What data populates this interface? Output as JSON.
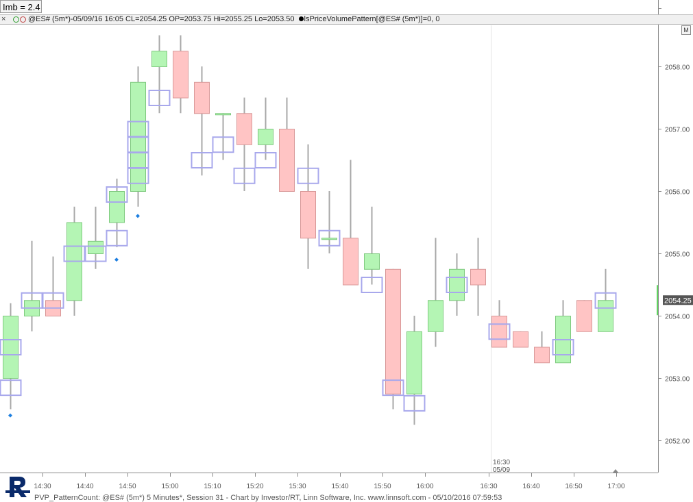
{
  "imbalance_label": "Imb = 2.4",
  "infobar": {
    "close_glyph": "×",
    "text": "@ES# (5m*)-05/09/16 16:05 CL=2054.25 OP=2053.75 Hi=2055.25 Lo=2053.50",
    "indicator_text": "lsPriceVolumePattern[@ES# (5m*)]=0, 0"
  },
  "m_button": "M",
  "footer_text": "PVP_PatternCount: @ES# (5m*) 5 Minutes*, Session 31 - Chart by Investor/RT, Linn Software, Inc. www.linnsoft.com - 05/10/2016 07:59:53",
  "colors": {
    "up_fill": "#b4f5b4",
    "up_border": "#7ec97e",
    "down_fill": "#ffc4c4",
    "down_border": "#d89898",
    "wick": "#a8a8a8",
    "pattern_box": "#a8a8ec",
    "marker": "#1e7fe0",
    "last_price_box": "#555555"
  },
  "chart_data": {
    "type": "candlestick",
    "ylim": [
      2051.55,
      2058.5
    ],
    "y_ticks": [
      {
        "value": 2052.0,
        "label": "2052.00"
      },
      {
        "value": 2053.0,
        "label": "2053.00"
      },
      {
        "value": 2054.0,
        "label": "2054.00"
      },
      {
        "value": 2055.0,
        "label": "2055.00"
      },
      {
        "value": 2056.0,
        "label": "2056.00"
      },
      {
        "value": 2057.0,
        "label": "2057.00"
      },
      {
        "value": 2058.0,
        "label": "2058.00"
      }
    ],
    "x_ticks": [
      {
        "bar": 2,
        "label": "14:30"
      },
      {
        "bar": 4,
        "label": "14:40"
      },
      {
        "bar": 6,
        "label": "14:50"
      },
      {
        "bar": 8,
        "label": "15:00"
      },
      {
        "bar": 10,
        "label": "15:10"
      },
      {
        "bar": 12,
        "label": "15:20"
      },
      {
        "bar": 14,
        "label": "15:30"
      },
      {
        "bar": 16,
        "label": "15:40"
      },
      {
        "bar": 18,
        "label": "15:50"
      },
      {
        "bar": 20,
        "label": "16:00"
      },
      {
        "bar": 23,
        "label": "16:30"
      },
      {
        "bar": 25,
        "label": "16:40"
      },
      {
        "bar": 27,
        "label": "16:50"
      },
      {
        "bar": 29,
        "label": "17:00"
      }
    ],
    "session_break": {
      "bar": 23,
      "time": "16:30",
      "date": "05/09"
    },
    "last_price": "2054.25",
    "candles": [
      {
        "o": 2053.0,
        "h": 2054.2,
        "l": 2052.5,
        "c": 2054.0
      },
      {
        "o": 2054.0,
        "h": 2055.2,
        "l": 2053.75,
        "c": 2054.25
      },
      {
        "o": 2054.25,
        "h": 2054.95,
        "l": 2054.0,
        "c": 2054.0
      },
      {
        "o": 2054.25,
        "h": 2055.75,
        "l": 2054.0,
        "c": 2055.5
      },
      {
        "o": 2055.0,
        "h": 2055.75,
        "l": 2054.75,
        "c": 2055.2
      },
      {
        "o": 2055.5,
        "h": 2056.2,
        "l": 2055.1,
        "c": 2056.0
      },
      {
        "o": 2056.0,
        "h": 2058.0,
        "l": 2055.75,
        "c": 2057.75
      },
      {
        "o": 2058.0,
        "h": 2058.5,
        "l": 2057.25,
        "c": 2058.25
      },
      {
        "o": 2058.25,
        "h": 2058.5,
        "l": 2057.25,
        "c": 2057.5
      },
      {
        "o": 2057.75,
        "h": 2058.0,
        "l": 2056.25,
        "c": 2057.25
      },
      {
        "o": 2057.25,
        "h": 2057.25,
        "l": 2056.5,
        "c": 2057.25
      },
      {
        "o": 2057.25,
        "h": 2057.5,
        "l": 2056.0,
        "c": 2056.75
      },
      {
        "o": 2056.75,
        "h": 2057.5,
        "l": 2056.5,
        "c": 2057.0
      },
      {
        "o": 2057.0,
        "h": 2057.5,
        "l": 2056.0,
        "c": 2056.0
      },
      {
        "o": 2056.0,
        "h": 2056.75,
        "l": 2054.75,
        "c": 2055.25
      },
      {
        "o": 2055.25,
        "h": 2056.0,
        "l": 2055.0,
        "c": 2055.25
      },
      {
        "o": 2055.25,
        "h": 2056.5,
        "l": 2054.5,
        "c": 2054.5
      },
      {
        "o": 2054.75,
        "h": 2055.75,
        "l": 2054.5,
        "c": 2055.0
      },
      {
        "o": 2054.75,
        "h": 2054.75,
        "l": 2052.5,
        "c": 2052.75
      },
      {
        "o": 2052.75,
        "h": 2054.0,
        "l": 2052.25,
        "c": 2053.75
      },
      {
        "o": 2053.75,
        "h": 2055.25,
        "l": 2053.5,
        "c": 2054.25
      },
      {
        "o": 2054.25,
        "h": 2055.0,
        "l": 2054.0,
        "c": 2054.75
      },
      {
        "o": 2054.75,
        "h": 2055.25,
        "l": 2054.0,
        "c": 2054.5
      },
      {
        "o": 2054.0,
        "h": 2054.25,
        "l": 2053.5,
        "c": 2053.5
      },
      {
        "o": 2053.75,
        "h": 2053.75,
        "l": 2053.5,
        "c": 2053.5
      },
      {
        "o": 2053.5,
        "h": 2053.75,
        "l": 2053.25,
        "c": 2053.25
      },
      {
        "o": 2053.25,
        "h": 2054.25,
        "l": 2053.25,
        "c": 2054.0
      },
      {
        "o": 2054.25,
        "h": 2054.25,
        "l": 2053.75,
        "c": 2053.75
      },
      {
        "o": 2053.75,
        "h": 2054.75,
        "l": 2053.75,
        "c": 2054.25
      }
    ],
    "pattern_boxes": [
      {
        "bar": 0,
        "price": 2053.5
      },
      {
        "bar": 0,
        "price": 2052.85
      },
      {
        "bar": 1,
        "price": 2054.25
      },
      {
        "bar": 2,
        "price": 2054.25
      },
      {
        "bar": 3,
        "price": 2055.0
      },
      {
        "bar": 4,
        "price": 2055.0
      },
      {
        "bar": 5,
        "price": 2055.25
      },
      {
        "bar": 5,
        "price": 2055.95
      },
      {
        "bar": 6,
        "price": 2056.25
      },
      {
        "bar": 6,
        "price": 2056.5
      },
      {
        "bar": 6,
        "price": 2056.75
      },
      {
        "bar": 6,
        "price": 2057.0
      },
      {
        "bar": 7,
        "price": 2057.5
      },
      {
        "bar": 9,
        "price": 2056.5
      },
      {
        "bar": 10,
        "price": 2056.75
      },
      {
        "bar": 11,
        "price": 2056.25
      },
      {
        "bar": 12,
        "price": 2056.5
      },
      {
        "bar": 14,
        "price": 2056.25
      },
      {
        "bar": 15,
        "price": 2055.25
      },
      {
        "bar": 17,
        "price": 2054.5
      },
      {
        "bar": 18,
        "price": 2052.85
      },
      {
        "bar": 19,
        "price": 2052.6
      },
      {
        "bar": 21,
        "price": 2054.5
      },
      {
        "bar": 23,
        "price": 2053.75
      },
      {
        "bar": 26,
        "price": 2053.5
      },
      {
        "bar": 28,
        "price": 2054.25
      }
    ],
    "markers": [
      {
        "bar": 0,
        "price": 2052.4
      },
      {
        "bar": 5,
        "price": 2054.9
      },
      {
        "bar": 6,
        "price": 2055.6
      }
    ]
  }
}
